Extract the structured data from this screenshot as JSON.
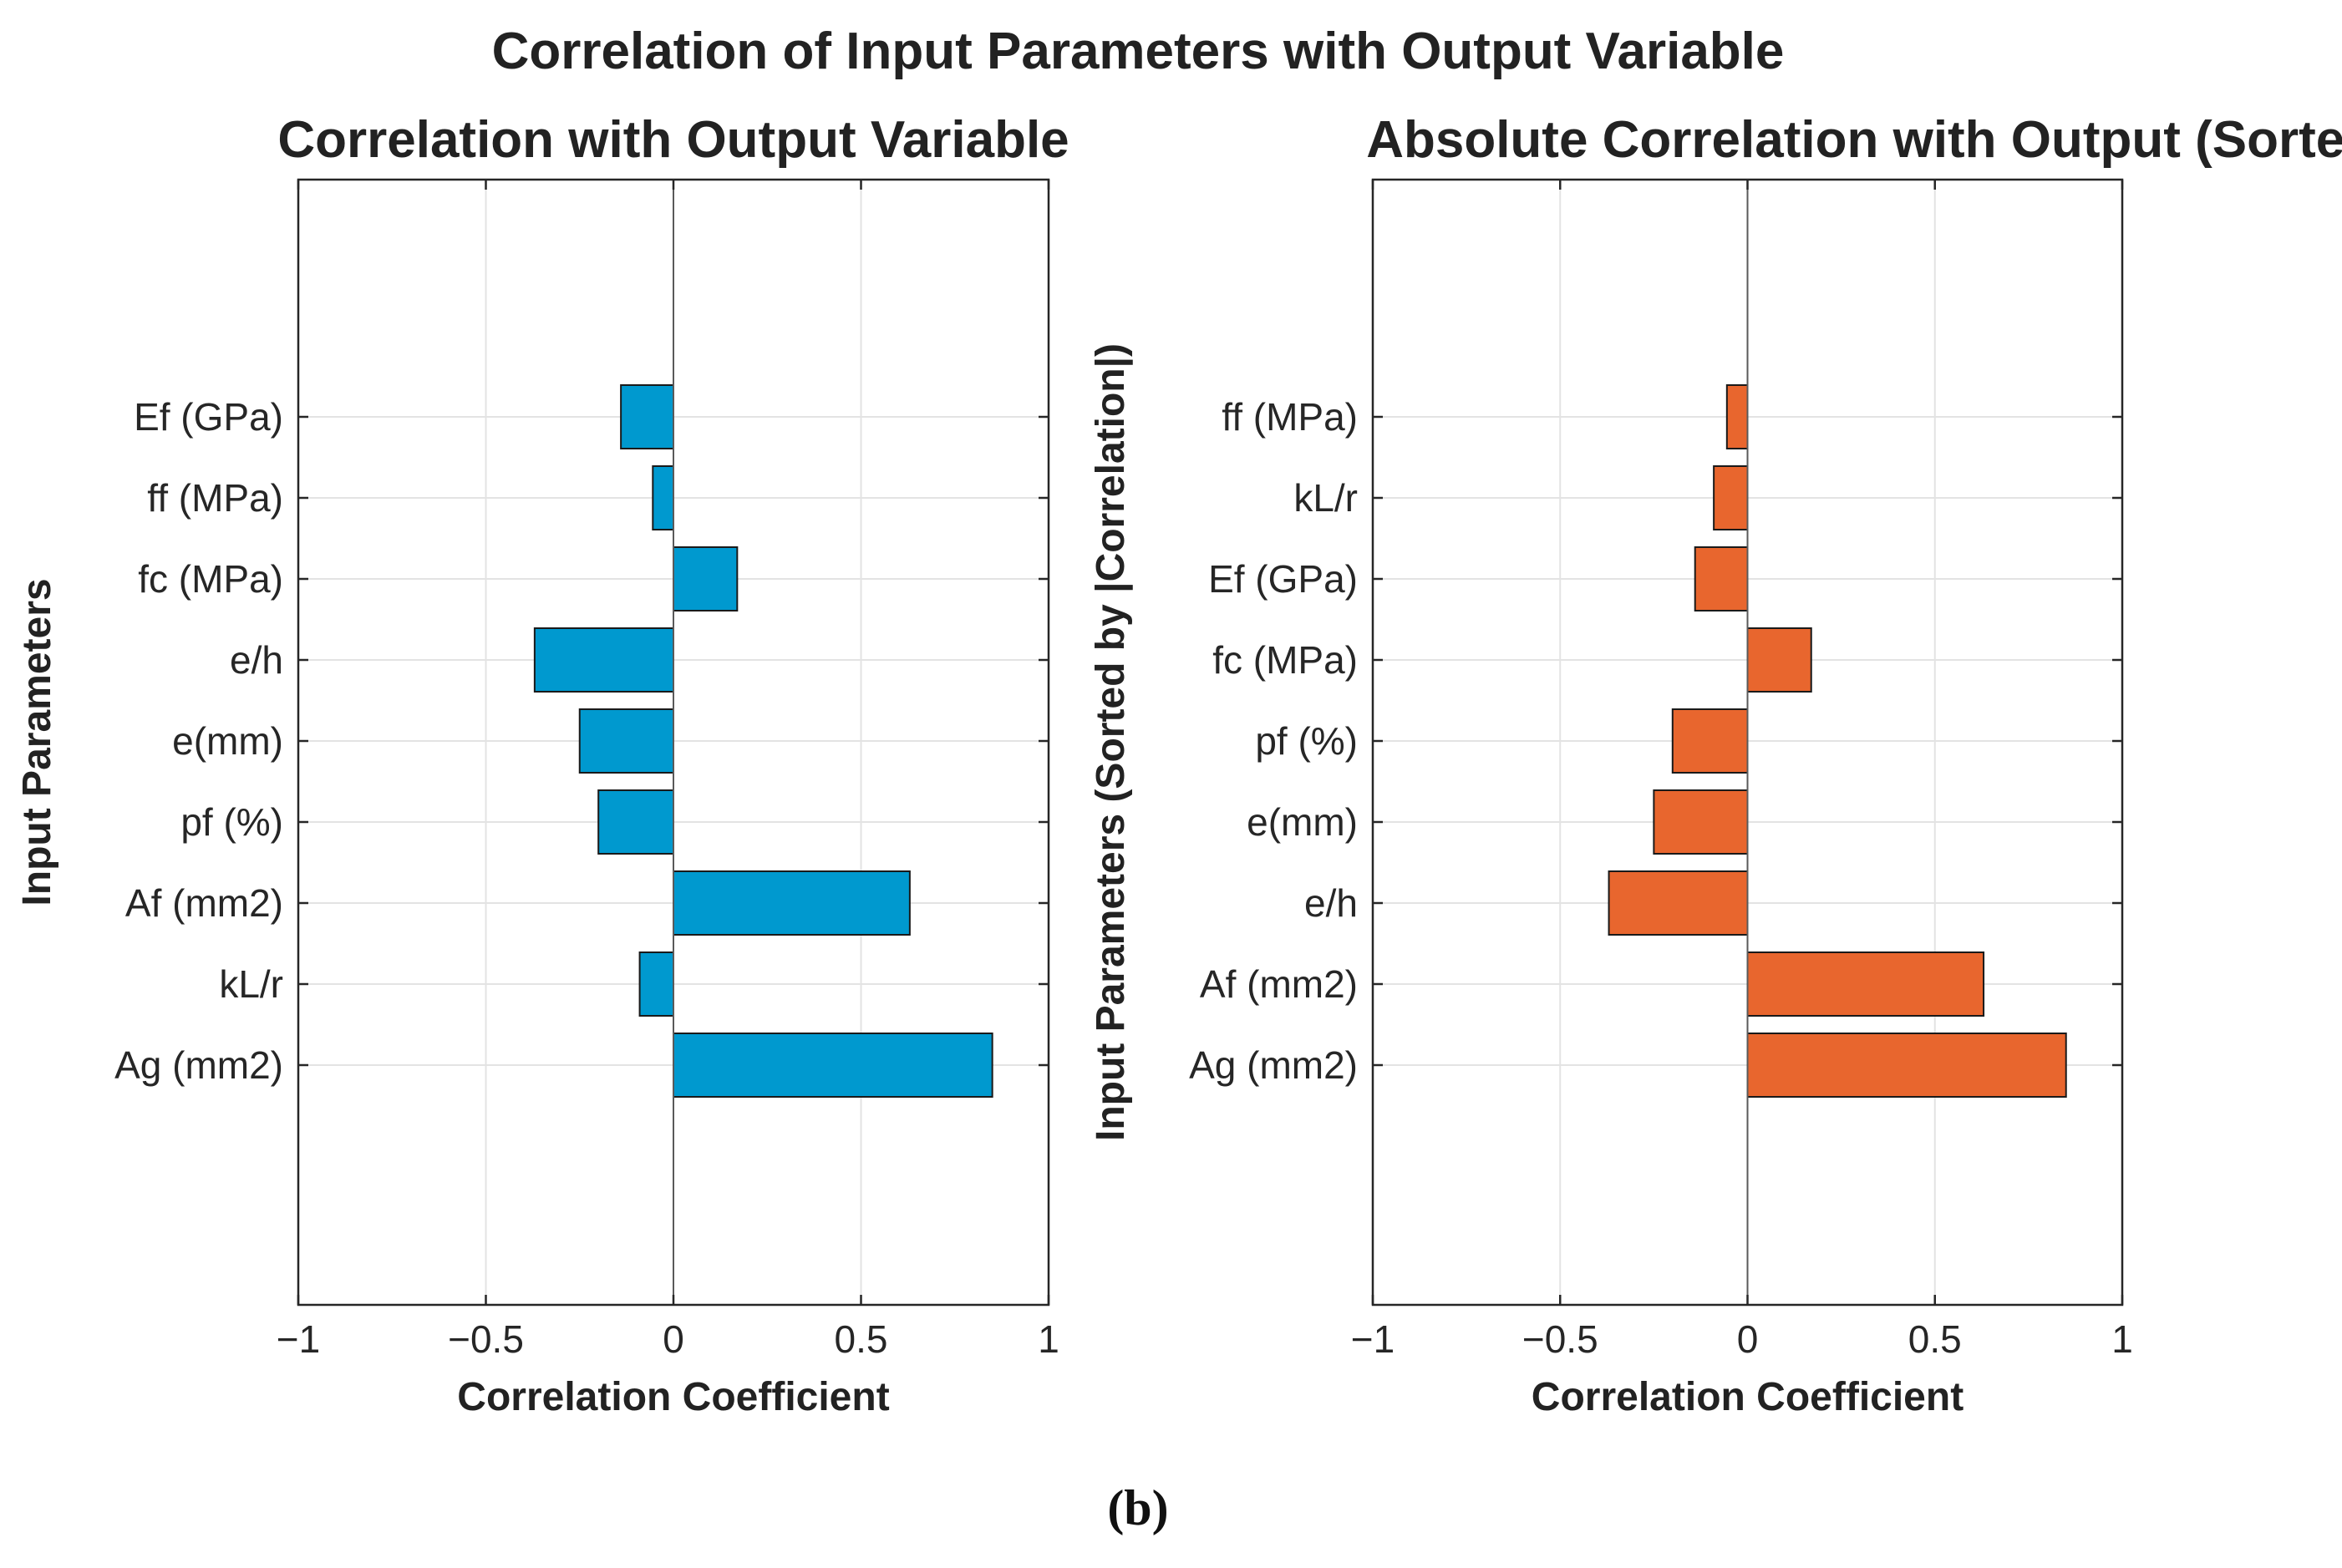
{
  "figure": {
    "suptitle": "Correlation of Input Parameters with Output Variable",
    "caption": "(b)"
  },
  "chart_data": [
    {
      "type": "bar",
      "orientation": "horizontal",
      "title": "Correlation with Output Variable",
      "xlabel": "Correlation Coefficient",
      "ylabel": "Input Parameters",
      "xlim": [
        -1,
        1
      ],
      "xticks": [
        -1,
        -0.5,
        0,
        0.5,
        1
      ],
      "xtick_labels": [
        "−1",
        "−0.5",
        "0",
        "0.5",
        "1"
      ],
      "grid": true,
      "bar_color": "#0099cf",
      "categories": [
        "Ag (mm2)",
        "kL/r",
        "Af (mm2)",
        "pf (%)",
        "e(mm)",
        "e/h",
        "fc (MPa)",
        "ff (MPa)",
        "Ef (GPa)"
      ],
      "values": [
        0.85,
        -0.09,
        0.63,
        -0.2,
        -0.25,
        -0.37,
        0.17,
        -0.055,
        -0.14
      ]
    },
    {
      "type": "bar",
      "orientation": "horizontal",
      "title": "Absolute Correlation with Output (Sorted)",
      "xlabel": "Correlation Coefficient",
      "ylabel": "Input Parameters (Sorted by |Correlation|)",
      "xlim": [
        -1,
        1
      ],
      "xticks": [
        -1,
        -0.5,
        0,
        0.5,
        1
      ],
      "xtick_labels": [
        "−1",
        "−0.5",
        "0",
        "0.5",
        "1"
      ],
      "grid": true,
      "bar_color": "#e8662e",
      "categories": [
        "Ag (mm2)",
        "Af (mm2)",
        "e/h",
        "e(mm)",
        "pf (%)",
        "fc (MPa)",
        "Ef (GPa)",
        "kL/r",
        "ff (MPa)"
      ],
      "values": [
        0.85,
        0.63,
        -0.37,
        -0.25,
        -0.2,
        0.17,
        -0.14,
        -0.09,
        -0.055
      ]
    }
  ]
}
